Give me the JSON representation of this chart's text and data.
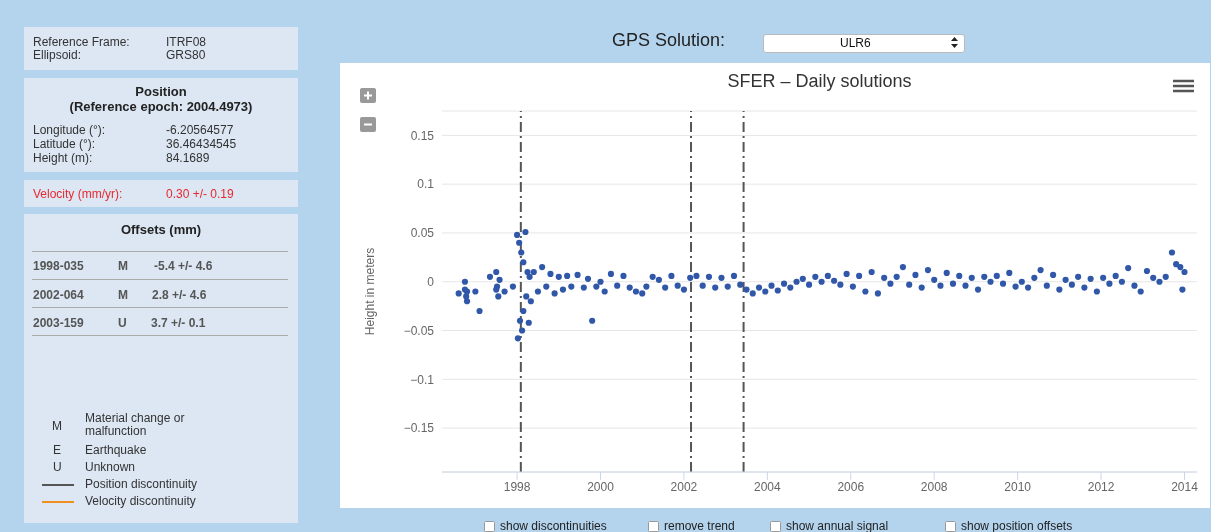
{
  "chart_data": [
    {
      "type": "other",
      "annotations": [
        "Reference Frame:",
        "ITRF08",
        "Ellipsoid:",
        "GRS80",
        "Position",
        "(Reference epoch: 2004.4973)",
        "Longitude (°):",
        "-6.20564577",
        "Latitude (°):",
        "36.46434545",
        "Height (m):",
        "84.1689",
        "Velocity (mm/yr):",
        "0.30 +/- 0.19",
        "Offsets (mm)",
        "1998-035",
        "M",
        "-5.4 +/- 4.6",
        "2002-064",
        "M",
        "2.8 +/- 4.6",
        "2003-159",
        "U",
        "3.7 +/- 0.1",
        "M",
        "Material change or malfunction",
        "E",
        "Earthquake",
        "U",
        "Unknown",
        "Position discontinuity",
        "Velocity discontinuity"
      ]
    },
    {
      "type": "scatter",
      "title": "SFER – Daily solutions",
      "ylabel": "Height in meters",
      "annotations": [
        "GPS Solution:",
        "ULR6",
        "show discontinuities",
        "remove trend",
        "show annual signal",
        "show position offsets"
      ],
      "x": [
        1996.6,
        1996.75,
        1996.75,
        1996.8,
        1996.8,
        1996.78,
        1997.1,
        1997.0,
        1997.35,
        1997.5,
        1997.52,
        1997.55,
        1997.5,
        1997.58,
        1997.7,
        1997.9,
        1998.0,
        1998.02,
        1998.05,
        1998.07,
        1998.1,
        1998.12,
        1998.15,
        1998.15,
        1998.2,
        1998.22,
        1998.25,
        1998.28,
        1998.3,
        1998.33,
        1998.4,
        1998.5,
        1998.6,
        1998.7,
        1998.8,
        1998.9,
        1999.0,
        1999.1,
        1999.2,
        1999.3,
        1999.45,
        1999.6,
        1999.7,
        1999.8,
        1999.9,
        2000.0,
        2000.1,
        2000.25,
        2000.4,
        2000.55,
        2000.7,
        2000.85,
        2001.0,
        2001.1,
        2001.25,
        2001.4,
        2001.55,
        2001.7,
        2001.85,
        2002.0,
        2002.15,
        2002.3,
        2002.45,
        2002.6,
        2002.75,
        2002.9,
        2003.05,
        2003.2,
        2003.35,
        2003.5,
        2003.65,
        2003.8,
        2003.95,
        2004.1,
        2004.25,
        2004.4,
        2004.55,
        2004.7,
        2004.85,
        2005.0,
        2005.15,
        2005.3,
        2005.45,
        2005.6,
        2005.75,
        2005.9,
        2006.05,
        2006.2,
        2006.35,
        2006.5,
        2006.65,
        2006.8,
        2006.95,
        2007.1,
        2007.25,
        2007.4,
        2007.55,
        2007.7,
        2007.85,
        2008.0,
        2008.15,
        2008.3,
        2008.45,
        2008.6,
        2008.75,
        2008.9,
        2009.05,
        2009.2,
        2009.35,
        2009.5,
        2009.65,
        2009.8,
        2009.95,
        2010.1,
        2010.25,
        2010.4,
        2010.55,
        2010.7,
        2010.85,
        2011.0,
        2011.15,
        2011.3,
        2011.45,
        2011.6,
        2011.75,
        2011.9,
        2012.05,
        2012.2,
        2012.35,
        2012.5,
        2012.65,
        2012.8,
        2012.95,
        2013.1,
        2013.25,
        2013.4,
        2013.55,
        2013.7,
        2013.8,
        2013.9,
        2013.95,
        2014.0
      ],
      "values": [
        -0.012,
        0.0,
        -0.008,
        -0.02,
        -0.01,
        -0.015,
        -0.03,
        -0.01,
        0.005,
        0.01,
        -0.005,
        -0.015,
        -0.008,
        0.002,
        -0.01,
        -0.005,
        0.048,
        -0.058,
        0.04,
        -0.04,
        0.03,
        -0.05,
        0.02,
        -0.03,
        0.051,
        -0.015,
        0.01,
        -0.042,
        0.005,
        -0.02,
        0.01,
        -0.01,
        0.015,
        -0.005,
        0.008,
        -0.012,
        0.005,
        -0.008,
        0.006,
        -0.005,
        0.007,
        -0.006,
        0.003,
        -0.04,
        -0.005,
        0.0,
        -0.01,
        0.008,
        -0.004,
        0.006,
        -0.006,
        -0.01,
        -0.012,
        -0.005,
        0.005,
        0.002,
        -0.006,
        0.006,
        -0.004,
        -0.008,
        0.004,
        0.006,
        -0.004,
        0.005,
        -0.006,
        0.004,
        -0.005,
        0.006,
        -0.003,
        -0.008,
        -0.012,
        -0.006,
        -0.01,
        -0.004,
        -0.009,
        -0.002,
        -0.006,
        0.0,
        0.003,
        -0.003,
        0.005,
        0.0,
        0.006,
        0.001,
        -0.003,
        0.008,
        -0.005,
        0.006,
        -0.01,
        0.01,
        -0.012,
        0.004,
        -0.002,
        0.005,
        0.015,
        -0.003,
        0.007,
        -0.006,
        0.012,
        0.002,
        -0.004,
        0.009,
        -0.002,
        0.006,
        -0.004,
        0.004,
        -0.008,
        0.005,
        0.0,
        0.006,
        -0.002,
        0.009,
        -0.005,
        0.0,
        -0.006,
        0.004,
        0.012,
        -0.004,
        0.007,
        -0.008,
        0.002,
        -0.003,
        0.005,
        -0.006,
        0.003,
        -0.01,
        0.004,
        -0.002,
        0.006,
        0.0,
        0.014,
        -0.004,
        -0.01,
        0.011,
        0.004,
        0.0,
        0.005,
        0.03,
        0.018,
        0.015,
        -0.008,
        0.01
      ],
      "color": "#3057a8",
      "marker": "circle",
      "xlim": [
        1996.2,
        2014.3
      ],
      "xticks": [
        1998,
        2000,
        2002,
        2004,
        2006,
        2008,
        2010,
        2012,
        2014
      ],
      "ylim": [
        -0.195,
        0.175
      ],
      "yticks": [
        -0.15,
        -0.1,
        -0.05,
        0,
        0.05,
        0.1,
        0.15
      ],
      "grid": "y",
      "legend": false,
      "ref_lines": [
        {
          "axis": "x",
          "value": 1998.09,
          "color": "#555555",
          "line_style": "dashed"
        },
        {
          "axis": "x",
          "value": 2002.17,
          "color": "#555555",
          "line_style": "dashed"
        },
        {
          "axis": "x",
          "value": 2003.43,
          "color": "#555555",
          "line_style": "dashed"
        }
      ]
    }
  ]
}
